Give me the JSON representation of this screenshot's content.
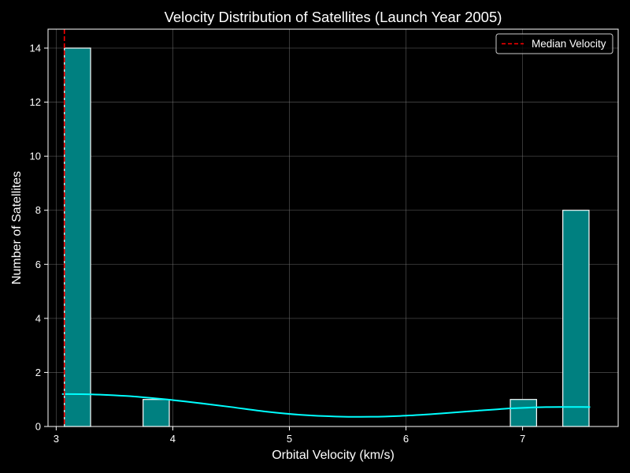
{
  "chart_data": {
    "type": "bar",
    "title": "Velocity Distribution of Satellites (Launch Year 2005)",
    "xlabel": "Orbital Velocity (km/s)",
    "ylabel": "Number of Satellites",
    "xlim": [
      2.93,
      7.82
    ],
    "ylim": [
      0,
      14.7
    ],
    "x_ticks": [
      3,
      4,
      5,
      6,
      7
    ],
    "y_ticks": [
      0,
      2,
      4,
      6,
      8,
      10,
      12,
      14
    ],
    "grid": true,
    "bin_width": 0.225,
    "bins": [
      {
        "x_start": 3.07,
        "count": 14
      },
      {
        "x_start": 3.745,
        "count": 1
      },
      {
        "x_start": 6.895,
        "count": 1
      },
      {
        "x_start": 7.345,
        "count": 8
      }
    ],
    "kde_curve": {
      "x": [
        3.05,
        3.3,
        3.6,
        3.9,
        4.2,
        4.5,
        4.8,
        5.1,
        5.4,
        5.7,
        6.0,
        6.3,
        6.6,
        6.9,
        7.2,
        7.58
      ],
      "y": [
        1.2,
        1.19,
        1.13,
        1.02,
        0.88,
        0.72,
        0.55,
        0.43,
        0.37,
        0.36,
        0.4,
        0.48,
        0.58,
        0.67,
        0.72,
        0.72
      ]
    },
    "median_velocity": 3.07,
    "legend": {
      "position": "top-right",
      "entries": [
        {
          "label": "Median Velocity",
          "style": "dashed",
          "color": "#ff0000"
        }
      ]
    },
    "colors": {
      "bar_fill": "#008080",
      "bar_edge": "#ffffff",
      "kde_line": "#00ffff",
      "median_line": "#ff0000",
      "background": "#000000",
      "axis": "#ffffff",
      "grid": "#808080"
    }
  }
}
